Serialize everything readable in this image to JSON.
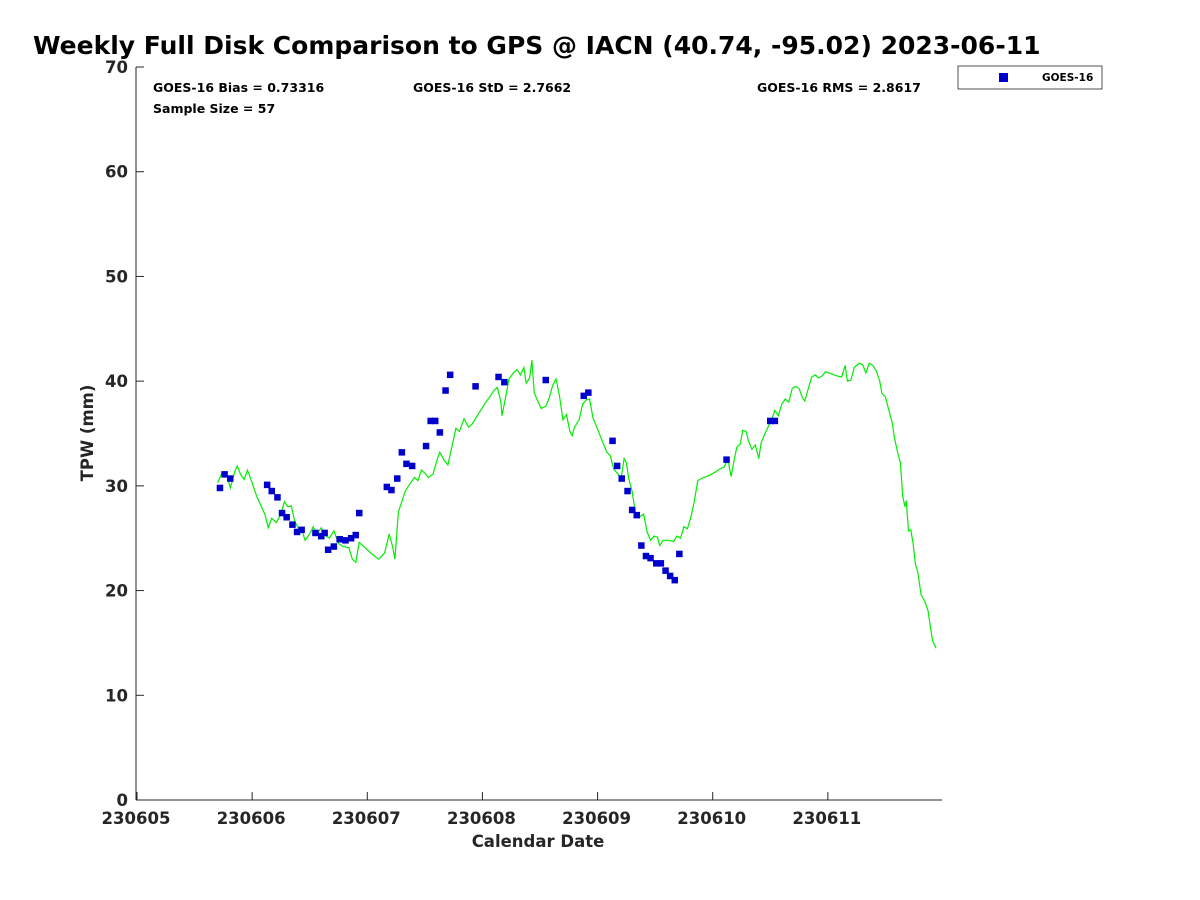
{
  "chart_data": {
    "type": "scatter",
    "title": "Weekly Full Disk Comparison to GPS @ IACN (40.74, -95.02) 2023-06-11",
    "xlabel": "Calendar Date",
    "ylabel": "TPW (mm)",
    "xlim": [
      0,
      7
    ],
    "ylim": [
      0,
      70
    ],
    "x_ticks": [
      {
        "value": 0,
        "label": "230605"
      },
      {
        "value": 1,
        "label": "230606"
      },
      {
        "value": 2,
        "label": "230607"
      },
      {
        "value": 3,
        "label": "230608"
      },
      {
        "value": 4,
        "label": "230609"
      },
      {
        "value": 5,
        "label": "230610"
      },
      {
        "value": 6,
        "label": "230611"
      }
    ],
    "y_ticks": [
      {
        "value": 0,
        "label": "0"
      },
      {
        "value": 10,
        "label": "10"
      },
      {
        "value": 20,
        "label": "20"
      },
      {
        "value": 30,
        "label": "30"
      },
      {
        "value": 40,
        "label": "40"
      },
      {
        "value": 50,
        "label": "50"
      },
      {
        "value": 60,
        "label": "60"
      },
      {
        "value": 70,
        "label": "70"
      }
    ],
    "stats": {
      "bias": "GOES-16 Bias = 0.73316",
      "std": "GOES-16 StD = 2.7662",
      "rms": "GOES-16 RMS = 2.8617",
      "sample": "Sample Size = 57"
    },
    "legend": {
      "position": "top-right-outside",
      "entries": [
        {
          "label": "GOES-16",
          "color": "#0000cc",
          "marker": "square"
        }
      ]
    },
    "series": [
      {
        "name": "GOES-16",
        "color": "#0000cc",
        "marker": "square",
        "points": [
          [
            0.72,
            29.8
          ],
          [
            0.76,
            31.1
          ],
          [
            0.81,
            30.7
          ],
          [
            1.13,
            30.1
          ],
          [
            1.17,
            29.5
          ],
          [
            1.22,
            28.9
          ],
          [
            1.26,
            27.4
          ],
          [
            1.3,
            27.0
          ],
          [
            1.35,
            26.3
          ],
          [
            1.39,
            25.6
          ],
          [
            1.43,
            25.8
          ],
          [
            1.55,
            25.5
          ],
          [
            1.6,
            25.2
          ],
          [
            1.63,
            25.5
          ],
          [
            1.66,
            23.9
          ],
          [
            1.71,
            24.2
          ],
          [
            1.76,
            24.9
          ],
          [
            1.81,
            24.8
          ],
          [
            1.86,
            25.0
          ],
          [
            1.9,
            25.3
          ],
          [
            1.93,
            27.4
          ],
          [
            2.17,
            29.9
          ],
          [
            2.21,
            29.6
          ],
          [
            2.26,
            30.7
          ],
          [
            2.3,
            33.2
          ],
          [
            2.34,
            32.1
          ],
          [
            2.39,
            31.9
          ],
          [
            2.51,
            33.8
          ],
          [
            2.55,
            36.2
          ],
          [
            2.59,
            36.2
          ],
          [
            2.63,
            35.1
          ],
          [
            2.68,
            39.1
          ],
          [
            2.72,
            40.6
          ],
          [
            2.94,
            39.5
          ],
          [
            3.14,
            40.4
          ],
          [
            3.19,
            39.9
          ],
          [
            3.55,
            40.1
          ],
          [
            3.88,
            38.6
          ],
          [
            3.92,
            38.9
          ],
          [
            4.13,
            34.3
          ],
          [
            4.17,
            31.9
          ],
          [
            4.21,
            30.7
          ],
          [
            4.26,
            29.5
          ],
          [
            4.3,
            27.7
          ],
          [
            4.34,
            27.2
          ],
          [
            4.38,
            24.3
          ],
          [
            4.42,
            23.3
          ],
          [
            4.46,
            23.1
          ],
          [
            4.51,
            22.6
          ],
          [
            4.55,
            22.6
          ],
          [
            4.59,
            21.9
          ],
          [
            4.63,
            21.4
          ],
          [
            4.67,
            21.0
          ],
          [
            4.71,
            23.5
          ],
          [
            5.12,
            32.5
          ],
          [
            5.5,
            36.2
          ],
          [
            5.54,
            36.2
          ]
        ]
      },
      {
        "name": "GPS",
        "color": "#00ee00",
        "marker": "line",
        "points": [
          [
            0.7,
            30.3
          ],
          [
            0.74,
            31.3
          ],
          [
            0.78,
            31.1
          ],
          [
            0.81,
            29.8
          ],
          [
            0.85,
            31.4
          ],
          [
            0.87,
            31.9
          ],
          [
            0.9,
            31.1
          ],
          [
            0.93,
            30.6
          ],
          [
            0.96,
            31.5
          ],
          [
            1.0,
            30.3
          ],
          [
            1.04,
            29.0
          ],
          [
            1.08,
            28.0
          ],
          [
            1.11,
            27.3
          ],
          [
            1.14,
            26.0
          ],
          [
            1.17,
            26.9
          ],
          [
            1.21,
            26.5
          ],
          [
            1.25,
            27.3
          ],
          [
            1.28,
            28.5
          ],
          [
            1.31,
            28.0
          ],
          [
            1.34,
            28.1
          ],
          [
            1.37,
            26.6
          ],
          [
            1.4,
            26.0
          ],
          [
            1.43,
            25.8
          ],
          [
            1.46,
            24.8
          ],
          [
            1.5,
            25.4
          ],
          [
            1.53,
            26.1
          ],
          [
            1.56,
            25.3
          ],
          [
            1.6,
            26.0
          ],
          [
            1.63,
            25.3
          ],
          [
            1.67,
            25.0
          ],
          [
            1.71,
            25.7
          ],
          [
            1.75,
            24.5
          ],
          [
            1.79,
            24.2
          ],
          [
            1.84,
            24.1
          ],
          [
            1.87,
            23.0
          ],
          [
            1.9,
            22.7
          ],
          [
            1.93,
            24.6
          ],
          [
            2.0,
            23.9
          ],
          [
            2.05,
            23.4
          ],
          [
            2.1,
            23.0
          ],
          [
            2.15,
            23.6
          ],
          [
            2.19,
            25.4
          ],
          [
            2.22,
            24.2
          ],
          [
            2.24,
            23.0
          ],
          [
            2.27,
            27.5
          ],
          [
            2.3,
            28.5
          ],
          [
            2.33,
            29.5
          ],
          [
            2.37,
            30.2
          ],
          [
            2.41,
            30.8
          ],
          [
            2.44,
            30.5
          ],
          [
            2.47,
            31.5
          ],
          [
            2.5,
            31.2
          ],
          [
            2.53,
            30.8
          ],
          [
            2.57,
            31.1
          ],
          [
            2.61,
            32.6
          ],
          [
            2.63,
            33.2
          ],
          [
            2.67,
            32.4
          ],
          [
            2.7,
            32.0
          ],
          [
            2.74,
            34.0
          ],
          [
            2.77,
            35.5
          ],
          [
            2.8,
            35.2
          ],
          [
            2.84,
            36.4
          ],
          [
            2.88,
            35.6
          ],
          [
            2.91,
            35.9
          ],
          [
            2.95,
            36.6
          ],
          [
            2.99,
            37.3
          ],
          [
            3.03,
            38.0
          ],
          [
            3.07,
            38.6
          ],
          [
            3.1,
            39.1
          ],
          [
            3.13,
            39.4
          ],
          [
            3.16,
            38.0
          ],
          [
            3.17,
            36.7
          ],
          [
            3.2,
            38.4
          ],
          [
            3.23,
            40.2
          ],
          [
            3.27,
            40.8
          ],
          [
            3.3,
            41.1
          ],
          [
            3.33,
            40.6
          ],
          [
            3.36,
            41.3
          ],
          [
            3.38,
            39.8
          ],
          [
            3.41,
            40.3
          ],
          [
            3.43,
            42.0
          ],
          [
            3.45,
            38.9
          ],
          [
            3.48,
            38.1
          ],
          [
            3.51,
            37.4
          ],
          [
            3.55,
            37.6
          ],
          [
            3.58,
            38.4
          ],
          [
            3.61,
            39.6
          ],
          [
            3.64,
            40.2
          ],
          [
            3.67,
            38.5
          ],
          [
            3.7,
            36.3
          ],
          [
            3.73,
            36.8
          ],
          [
            3.76,
            35.2
          ],
          [
            3.78,
            34.8
          ],
          [
            3.8,
            35.6
          ],
          [
            3.84,
            36.3
          ],
          [
            3.87,
            37.8
          ],
          [
            3.9,
            38.2
          ],
          [
            3.93,
            38.3
          ],
          [
            3.96,
            36.5
          ],
          [
            4.0,
            35.4
          ],
          [
            4.04,
            34.3
          ],
          [
            4.08,
            33.2
          ],
          [
            4.11,
            32.9
          ],
          [
            4.14,
            31.6
          ],
          [
            4.18,
            31.1
          ],
          [
            4.2,
            30.4
          ],
          [
            4.23,
            32.6
          ],
          [
            4.25,
            32.2
          ],
          [
            4.27,
            30.7
          ],
          [
            4.3,
            29.5
          ],
          [
            4.33,
            27.3
          ],
          [
            4.36,
            27.0
          ],
          [
            4.4,
            27.3
          ],
          [
            4.43,
            25.6
          ],
          [
            4.46,
            24.8
          ],
          [
            4.49,
            25.2
          ],
          [
            4.52,
            25.1
          ],
          [
            4.54,
            24.3
          ],
          [
            4.57,
            24.8
          ],
          [
            4.61,
            24.8
          ],
          [
            4.66,
            24.7
          ],
          [
            4.69,
            25.2
          ],
          [
            4.72,
            25.0
          ],
          [
            4.75,
            26.1
          ],
          [
            4.78,
            25.9
          ],
          [
            4.81,
            27.0
          ],
          [
            4.84,
            28.5
          ],
          [
            4.87,
            30.5
          ],
          [
            4.92,
            30.8
          ],
          [
            4.97,
            31.0
          ],
          [
            5.02,
            31.3
          ],
          [
            5.06,
            31.6
          ],
          [
            5.1,
            31.8
          ],
          [
            5.13,
            32.6
          ],
          [
            5.16,
            30.9
          ],
          [
            5.19,
            32.7
          ],
          [
            5.21,
            33.7
          ],
          [
            5.24,
            34.0
          ],
          [
            5.26,
            35.3
          ],
          [
            5.29,
            35.2
          ],
          [
            5.31,
            34.3
          ],
          [
            5.34,
            33.5
          ],
          [
            5.37,
            33.9
          ],
          [
            5.4,
            32.6
          ],
          [
            5.42,
            34.1
          ],
          [
            5.45,
            34.9
          ],
          [
            5.48,
            35.6
          ],
          [
            5.51,
            36.3
          ],
          [
            5.54,
            37.2
          ],
          [
            5.57,
            36.7
          ],
          [
            5.6,
            37.8
          ],
          [
            5.63,
            38.3
          ],
          [
            5.66,
            38.0
          ],
          [
            5.69,
            39.3
          ],
          [
            5.72,
            39.5
          ],
          [
            5.75,
            39.3
          ],
          [
            5.78,
            38.4
          ],
          [
            5.8,
            38.1
          ],
          [
            5.83,
            39.3
          ],
          [
            5.86,
            40.4
          ],
          [
            5.89,
            40.6
          ],
          [
            5.92,
            40.3
          ],
          [
            5.95,
            40.5
          ],
          [
            5.98,
            40.9
          ],
          [
            6.03,
            40.7
          ],
          [
            6.08,
            40.5
          ],
          [
            6.12,
            40.4
          ],
          [
            6.15,
            41.5
          ],
          [
            6.17,
            40.0
          ],
          [
            6.2,
            40.1
          ],
          [
            6.23,
            41.3
          ],
          [
            6.27,
            41.7
          ],
          [
            6.3,
            41.6
          ],
          [
            6.33,
            40.8
          ],
          [
            6.36,
            41.7
          ],
          [
            6.39,
            41.5
          ],
          [
            6.42,
            41.0
          ],
          [
            6.45,
            40.0
          ],
          [
            6.47,
            38.8
          ],
          [
            6.5,
            38.5
          ],
          [
            6.53,
            37.2
          ],
          [
            6.56,
            36.0
          ],
          [
            6.58,
            34.5
          ],
          [
            6.61,
            33.0
          ],
          [
            6.63,
            32.2
          ],
          [
            6.65,
            29.0
          ],
          [
            6.67,
            28.0
          ],
          [
            6.68,
            28.6
          ],
          [
            6.7,
            25.7
          ],
          [
            6.72,
            25.8
          ],
          [
            6.74,
            24.5
          ],
          [
            6.76,
            22.5
          ],
          [
            6.78,
            21.8
          ],
          [
            6.81,
            19.6
          ],
          [
            6.84,
            19.0
          ],
          [
            6.87,
            18.1
          ],
          [
            6.89,
            16.6
          ],
          [
            6.91,
            15.2
          ],
          [
            6.94,
            14.5
          ]
        ]
      }
    ]
  }
}
